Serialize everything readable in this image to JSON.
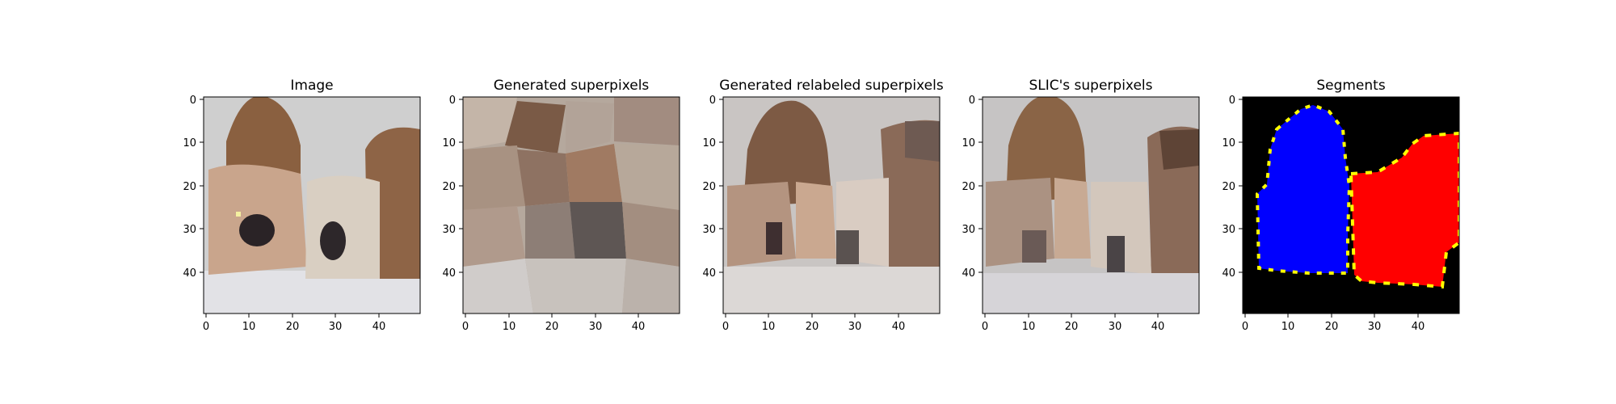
{
  "chart_data": [
    {
      "type": "image",
      "title": "Image",
      "xlim": [
        0,
        50
      ],
      "ylim": [
        50,
        0
      ],
      "x_ticks": [
        0,
        10,
        20,
        30,
        40
      ],
      "y_ticks": [
        0,
        10,
        20,
        30,
        40
      ],
      "grid": false,
      "content": "pixelated photo of two bulldogs with a light background and white foreground"
    },
    {
      "type": "image",
      "title": "Generated superpixels",
      "xlim": [
        0,
        50
      ],
      "ylim": [
        50,
        0
      ],
      "x_ticks": [
        0,
        10,
        20,
        30,
        40
      ],
      "y_ticks": [
        0,
        10,
        20,
        30,
        40
      ],
      "grid": false,
      "content": "superpixel mosaic of brown, grey and beige regions"
    },
    {
      "type": "image",
      "title": "Generated relabeled superpixels",
      "xlim": [
        0,
        50
      ],
      "ylim": [
        50,
        0
      ],
      "x_ticks": [
        0,
        10,
        20,
        30,
        40
      ],
      "y_ticks": [
        0,
        10,
        20,
        30,
        40
      ],
      "grid": false,
      "content": "relabeled superpixel mosaic with dog-shaped brown regions"
    },
    {
      "type": "image",
      "title": "SLIC's superpixels",
      "xlim": [
        0,
        50
      ],
      "ylim": [
        50,
        0
      ],
      "x_ticks": [
        0,
        10,
        20,
        30,
        40
      ],
      "y_ticks": [
        0,
        10,
        20,
        30,
        40
      ],
      "grid": false,
      "content": "SLIC superpixel segmentation showing two dog regions"
    },
    {
      "type": "image",
      "title": "Segments",
      "xlim": [
        0,
        50
      ],
      "ylim": [
        50,
        0
      ],
      "x_ticks": [
        0,
        10,
        20,
        30,
        40
      ],
      "y_ticks": [
        0,
        10,
        20,
        30,
        40
      ],
      "grid": false,
      "content": "segmentation mask: blue segment on the left, red segment on the right, yellow boundary pixels, black background",
      "colors": {
        "background": "#000000",
        "segment_left": "#0000ff",
        "segment_right": "#ff0000",
        "boundary": "#ffff00"
      }
    }
  ]
}
